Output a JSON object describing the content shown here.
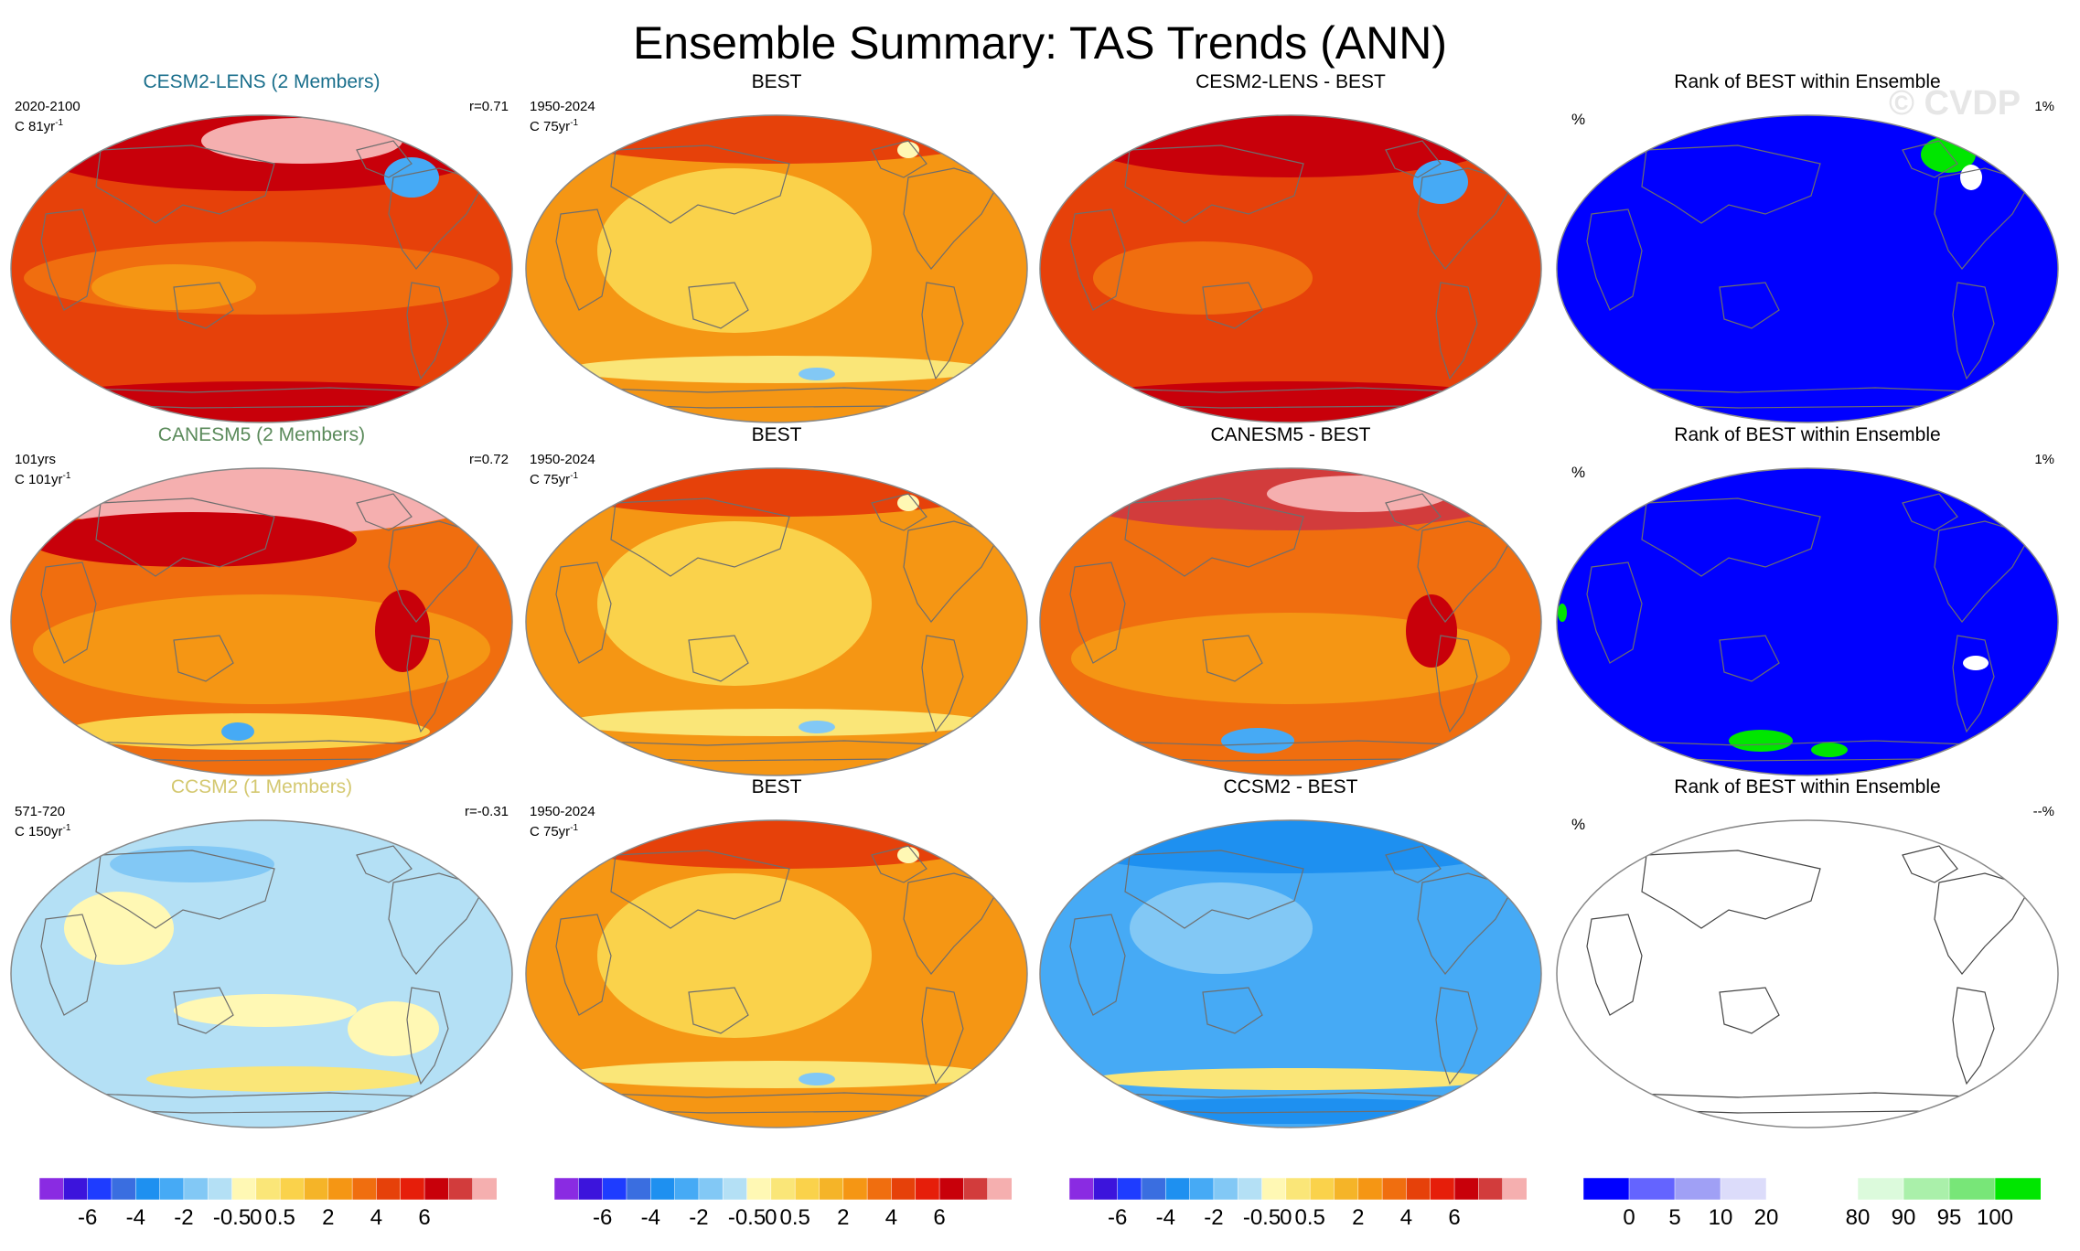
{
  "page": {
    "title": "Ensemble Summary: TAS Trends (ANN)",
    "watermark": "© CVDP"
  },
  "rows": [
    {
      "model": {
        "title": "CESM2-LENS (2 Members)",
        "title_color": "#1a6f8c",
        "period": "2020-2100",
        "units": "C 81yr",
        "correlation": "r=0.71"
      },
      "obs": {
        "title": "BEST",
        "period": "1950-2024",
        "units": "C 75yr"
      },
      "diff": {
        "title": "CESM2-LENS - BEST"
      },
      "rank": {
        "title": "Rank of BEST within Ensemble",
        "pct_left": "%",
        "pct_right": "1%"
      }
    },
    {
      "model": {
        "title": "CANESM5 (2 Members)",
        "title_color": "#5a8a5a",
        "period": "101yrs",
        "units": "C 101yr",
        "correlation": "r=0.72"
      },
      "obs": {
        "title": "BEST",
        "period": "1950-2024",
        "units": "C 75yr"
      },
      "diff": {
        "title": "CANESM5 - BEST"
      },
      "rank": {
        "title": "Rank of BEST within Ensemble",
        "pct_left": "%",
        "pct_right": "1%"
      }
    },
    {
      "model": {
        "title": "CCSM2 (1 Members)",
        "title_color": "#d4c870",
        "period": "571-720",
        "units": "C 150yr",
        "correlation": "r=-0.31"
      },
      "obs": {
        "title": "BEST",
        "period": "1950-2024",
        "units": "C 75yr"
      },
      "diff": {
        "title": "CCSM2 - BEST"
      },
      "rank": {
        "title": "Rank of BEST within Ensemble",
        "pct_left": "%",
        "pct_right": "--%"
      }
    }
  ],
  "units_superscript": "-1",
  "colorbars": {
    "trend": {
      "colors": [
        "#8a2be2",
        "#3c14dc",
        "#1e3cff",
        "#3a6ee0",
        "#1e90f0",
        "#46aaf5",
        "#82c8f5",
        "#b4e0f5",
        "#fff8b4",
        "#fae678",
        "#fad24b",
        "#f5b428",
        "#f59614",
        "#f06e0f",
        "#e6410a",
        "#e61e0a",
        "#c8000a",
        "#d23c3c",
        "#f5afaf"
      ],
      "labels": [
        "-6",
        "-4",
        "-2",
        "-0.5",
        "0",
        "0.5",
        "2",
        "4",
        "6"
      ],
      "label_boundaries": [
        2,
        4,
        6,
        8,
        9,
        10,
        12,
        14,
        16
      ]
    },
    "rank": {
      "colors": [
        "#0000ff",
        "#6464ff",
        "#a0a0f5",
        "#dcdcfa",
        "#ffffff",
        "#ffffff",
        "#dcfadc",
        "#aaf0aa",
        "#78e678",
        "#00e600"
      ],
      "labels": [
        "0",
        "5",
        "10",
        "20",
        "80",
        "90",
        "95",
        "100"
      ],
      "label_boundaries": [
        1,
        2,
        3,
        4,
        6,
        7,
        8,
        9
      ]
    }
  }
}
